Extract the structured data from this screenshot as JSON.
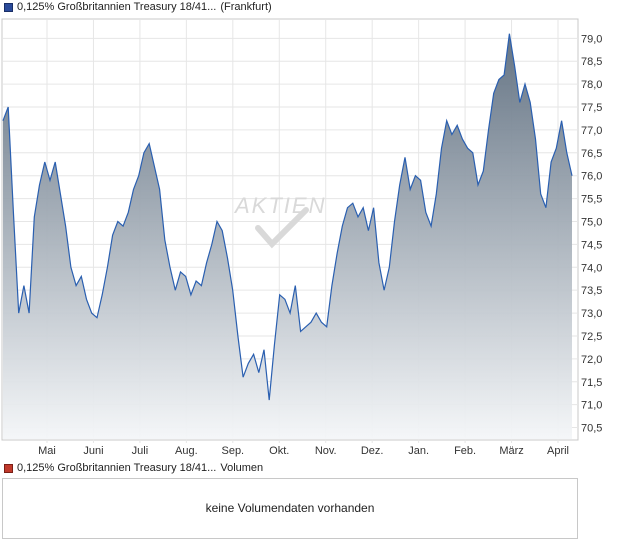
{
  "price_legend": {
    "name": "0,125% Großbritannien Treasury 18/41...",
    "exchange": "(Frankfurt)",
    "color": "#2a4a9a"
  },
  "volume_legend": {
    "name": "0,125% Großbritannien Treasury 18/41...",
    "label": "Volumen",
    "color": "#c0392b"
  },
  "volume_message": "keine Volumendaten vorhanden",
  "watermark": "AKTIEN",
  "chart_data": {
    "type": "area",
    "x_tick_labels": [
      "Mai",
      "Juni",
      "Juli",
      "Aug.",
      "Sep.",
      "Okt.",
      "Nov.",
      "Dez.",
      "Jan.",
      "Feb.",
      "März",
      "April"
    ],
    "y_tick_labels": [
      "70,5",
      "71,0",
      "71,5",
      "72,0",
      "72,5",
      "73,0",
      "73,5",
      "74,0",
      "74,5",
      "75,0",
      "75,5",
      "76,0",
      "76,5",
      "77,0",
      "77,5",
      "78,0",
      "78,5",
      "79,0"
    ],
    "ylim": [
      70.25,
      79.4
    ],
    "y_axis_side": "right",
    "grid": true,
    "line_color": "#2a5fb0",
    "fill_top_color": "#5d6d7e",
    "fill_bottom_color": "#f4f6f8",
    "series": [
      {
        "values": [
          77.2,
          77.5,
          75.2,
          73.0,
          73.6,
          73.0,
          75.1,
          75.8,
          76.3,
          75.9,
          76.3,
          75.6,
          74.9,
          74.0,
          73.6,
          73.8,
          73.3,
          73.0,
          72.9,
          73.4,
          74.0,
          74.7,
          75.0,
          74.9,
          75.2,
          75.7,
          76.0,
          76.5,
          76.7,
          76.2,
          75.7,
          74.6,
          74.0,
          73.5,
          73.9,
          73.8,
          73.4,
          73.7,
          73.6,
          74.1,
          74.5,
          75.0,
          74.8,
          74.2,
          73.5,
          72.5,
          71.6,
          71.9,
          72.1,
          71.7,
          72.2,
          71.1,
          72.3,
          73.4,
          73.3,
          73.0,
          73.6,
          72.6,
          72.7,
          72.8,
          73.0,
          72.8,
          72.7,
          73.6,
          74.3,
          74.9,
          75.3,
          75.4,
          75.1,
          75.3,
          74.8,
          75.3,
          74.1,
          73.5,
          74.0,
          75.0,
          75.8,
          76.4,
          75.7,
          76.0,
          75.9,
          75.2,
          74.9,
          75.6,
          76.6,
          77.2,
          76.9,
          77.1,
          76.8,
          76.6,
          76.5,
          75.8,
          76.1,
          77.0,
          77.8,
          78.1,
          78.2,
          79.1,
          78.4,
          77.6,
          78.0,
          77.6,
          76.8,
          75.6,
          75.3,
          76.3,
          76.6,
          77.2,
          76.5,
          76.0
        ]
      }
    ]
  }
}
